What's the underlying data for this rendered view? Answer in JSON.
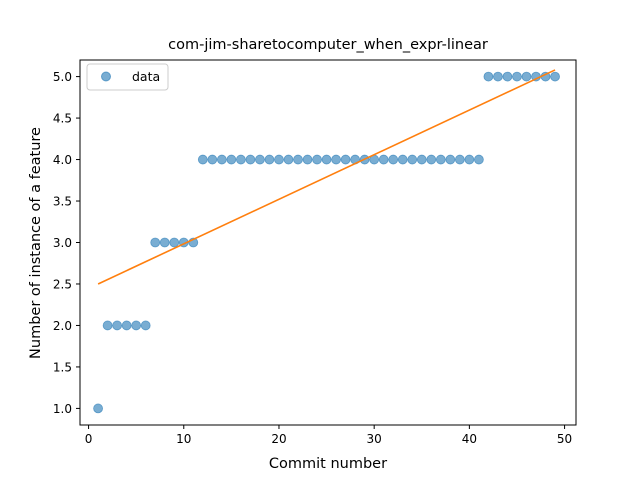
{
  "chart_data": {
    "type": "scatter",
    "title": "com-jim-sharetocomputer_when_expr-linear",
    "xlabel": "Commit number",
    "ylabel": "Number of instance of a feature",
    "xlim": [
      -0.9,
      51.2
    ],
    "ylim": [
      0.8,
      5.2
    ],
    "xticks": [
      0,
      10,
      20,
      30,
      40,
      50
    ],
    "yticks": [
      1.0,
      1.5,
      2.0,
      2.5,
      3.0,
      3.5,
      4.0,
      4.5,
      5.0
    ],
    "xtick_labels": [
      "0",
      "10",
      "20",
      "30",
      "40",
      "50"
    ],
    "ytick_labels": [
      "1.0",
      "1.5",
      "2.0",
      "2.5",
      "3.0",
      "3.5",
      "4.0",
      "4.5",
      "5.0"
    ],
    "legend_position": "upper-left",
    "grid": false,
    "series": [
      {
        "name": "data",
        "kind": "scatter",
        "color": "#1f77b4",
        "x": [
          1,
          2,
          3,
          4,
          5,
          6,
          7,
          8,
          9,
          10,
          11,
          12,
          13,
          14,
          15,
          16,
          17,
          18,
          19,
          20,
          21,
          22,
          23,
          24,
          25,
          26,
          27,
          28,
          29,
          30,
          31,
          32,
          33,
          34,
          35,
          36,
          37,
          38,
          39,
          40,
          41,
          42,
          43,
          44,
          45,
          46,
          47,
          48,
          49
        ],
        "y": [
          1,
          2,
          2,
          2,
          2,
          2,
          3,
          3,
          3,
          3,
          3,
          4,
          4,
          4,
          4,
          4,
          4,
          4,
          4,
          4,
          4,
          4,
          4,
          4,
          4,
          4,
          4,
          4,
          4,
          4,
          4,
          4,
          4,
          4,
          4,
          4,
          4,
          4,
          4,
          4,
          4,
          5,
          5,
          5,
          5,
          5,
          5,
          5,
          5
        ]
      },
      {
        "kind": "line",
        "color": "#ff7f0e",
        "x": [
          1,
          49
        ],
        "y": [
          2.5,
          5.08
        ]
      }
    ]
  }
}
